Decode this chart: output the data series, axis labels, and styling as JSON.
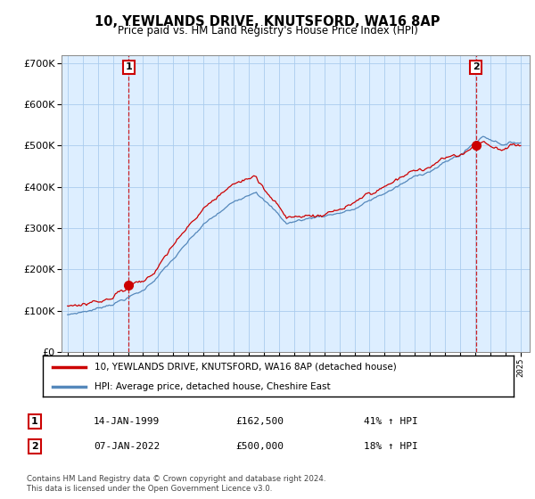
{
  "title": "10, YEWLANDS DRIVE, KNUTSFORD, WA16 8AP",
  "subtitle": "Price paid vs. HM Land Registry's House Price Index (HPI)",
  "legend_label_red": "10, YEWLANDS DRIVE, KNUTSFORD, WA16 8AP (detached house)",
  "legend_label_blue": "HPI: Average price, detached house, Cheshire East",
  "sale1_date": "14-JAN-1999",
  "sale1_price": "£162,500",
  "sale1_hpi": "41% ↑ HPI",
  "sale2_date": "07-JAN-2022",
  "sale2_price": "£500,000",
  "sale2_hpi": "18% ↑ HPI",
  "footer": "Contains HM Land Registry data © Crown copyright and database right 2024.\nThis data is licensed under the Open Government Licence v3.0.",
  "ylim": [
    0,
    720000
  ],
  "yticks": [
    0,
    100000,
    200000,
    300000,
    400000,
    500000,
    600000,
    700000
  ],
  "red_color": "#cc0000",
  "blue_color": "#5588bb",
  "sale1_year": 1999.04,
  "sale1_value": 162500,
  "sale2_year": 2022.04,
  "sale2_value": 500000,
  "bg_color": "#ffffff",
  "plot_bg_color": "#ddeeff",
  "grid_color": "#aaccee"
}
